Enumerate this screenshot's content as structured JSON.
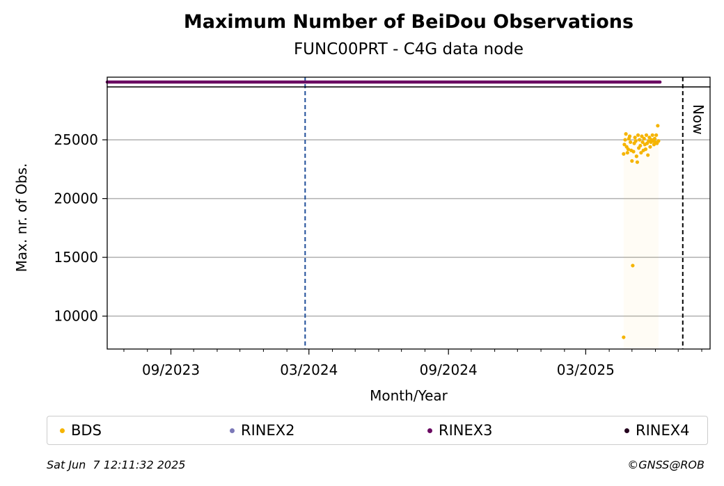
{
  "chart_data": {
    "type": "scatter",
    "title": "Maximum Number of BeiDou Observations",
    "subtitle": "FUNC00PRT - C4G data node",
    "xlabel": "Month/Year",
    "ylabel": "Max. nr. of Obs.",
    "x_tick_labels": [
      "09/2023",
      "03/2024",
      "09/2024",
      "03/2025"
    ],
    "y_ticks": [
      10000,
      15000,
      20000,
      25000
    ],
    "ylim": [
      7200,
      29500
    ],
    "xlim": [
      "2023-06-09",
      "2025-08-12"
    ],
    "grid": "horizontal",
    "reference_lines": [
      {
        "date": "2024-02-25",
        "style": "dashed",
        "color": "#1f4e99"
      },
      {
        "date": "2025-07-07",
        "style": "dashed",
        "color": "#000000",
        "label": "Now"
      }
    ],
    "series": [
      {
        "name": "BDS",
        "color": "#f5b400",
        "points": [
          [
            "2025-04-20",
            8200
          ],
          [
            "2025-04-20",
            23800
          ],
          [
            "2025-04-21",
            24600
          ],
          [
            "2025-04-22",
            25000
          ],
          [
            "2025-04-23",
            25500
          ],
          [
            "2025-04-24",
            24400
          ],
          [
            "2025-04-25",
            23900
          ],
          [
            "2025-04-26",
            24200
          ],
          [
            "2025-04-27",
            25100
          ],
          [
            "2025-04-28",
            25300
          ],
          [
            "2025-04-29",
            24800
          ],
          [
            "2025-04-30",
            24100
          ],
          [
            "2025-05-01",
            23200
          ],
          [
            "2025-05-02",
            14300
          ],
          [
            "2025-05-03",
            24000
          ],
          [
            "2025-05-04",
            24700
          ],
          [
            "2025-05-05",
            25200
          ],
          [
            "2025-05-06",
            24900
          ],
          [
            "2025-05-07",
            23600
          ],
          [
            "2025-05-08",
            23100
          ],
          [
            "2025-05-09",
            25400
          ],
          [
            "2025-05-10",
            24300
          ],
          [
            "2025-05-11",
            25000
          ],
          [
            "2025-05-12",
            24500
          ],
          [
            "2025-05-13",
            23900
          ],
          [
            "2025-05-14",
            25300
          ],
          [
            "2025-05-15",
            24800
          ],
          [
            "2025-05-16",
            24100
          ],
          [
            "2025-05-17",
            25100
          ],
          [
            "2025-05-18",
            24600
          ],
          [
            "2025-05-19",
            24200
          ],
          [
            "2025-05-20",
            25400
          ],
          [
            "2025-05-21",
            24700
          ],
          [
            "2025-05-22",
            23700
          ],
          [
            "2025-05-23",
            24900
          ],
          [
            "2025-05-24",
            25200
          ],
          [
            "2025-05-25",
            24400
          ],
          [
            "2025-05-26",
            24800
          ],
          [
            "2025-05-27",
            25000
          ],
          [
            "2025-05-28",
            25400
          ],
          [
            "2025-05-29",
            24900
          ],
          [
            "2025-05-30",
            24600
          ],
          [
            "2025-05-31",
            25100
          ],
          [
            "2025-06-01",
            24800
          ],
          [
            "2025-06-02",
            25400
          ],
          [
            "2025-06-03",
            24700
          ],
          [
            "2025-06-04",
            26200
          ],
          [
            "2025-06-05",
            24900
          ]
        ]
      },
      {
        "name": "RINEX2",
        "color": "#7b78b8",
        "points": []
      },
      {
        "name": "RINEX3",
        "color": "#6a0a62",
        "date_range": [
          "2023-06-09",
          "2025-06-07"
        ]
      },
      {
        "name": "RINEX4",
        "color": "#24001e",
        "points": []
      }
    ]
  },
  "annotation_now": "Now",
  "legend": [
    {
      "label": "BDS",
      "color": "#f5b400"
    },
    {
      "label": "RINEX2",
      "color": "#7b78b8"
    },
    {
      "label": "RINEX3",
      "color": "#6a0a62"
    },
    {
      "label": "RINEX4",
      "color": "#24001e"
    }
  ],
  "footer": {
    "timestamp": "Sat Jun  7 12:11:32 2025",
    "credit": "©GNSS@ROB"
  }
}
